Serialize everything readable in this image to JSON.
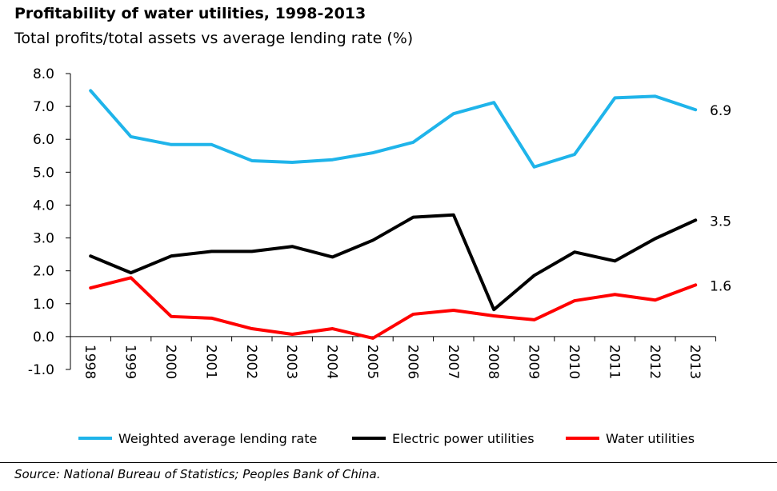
{
  "title": "Profitability of water utilities, 1998-2013",
  "subtitle": "Total profits/total assets vs average lending rate (%)",
  "source": "Source: National Bureau of Statistics; Peoples Bank of China.",
  "chart_data": {
    "type": "line",
    "title": "Profitability of water utilities, 1998-2013",
    "subtitle": "Total profits/total assets vs average lending rate (%)",
    "xlabel": "",
    "ylabel": "",
    "ylim": [
      -1,
      8
    ],
    "yticks": [
      "-1.0",
      "0.0",
      "1.0",
      "2.0",
      "3.0",
      "4.0",
      "5.0",
      "6.0",
      "7.0",
      "8.0"
    ],
    "grid": false,
    "legend": "bottom",
    "categories": [
      "1998",
      "1999",
      "2000",
      "2001",
      "2002",
      "2003",
      "2004",
      "2005",
      "2006",
      "2007",
      "2008",
      "2009",
      "2010",
      "2011",
      "2012",
      "2013"
    ],
    "series": [
      {
        "name": "Weighted average lending rate",
        "color": "#1fb4ea",
        "end_label": "6.9",
        "values": [
          7.48,
          6.08,
          5.84,
          5.84,
          5.35,
          5.3,
          5.38,
          5.59,
          5.91,
          6.78,
          7.12,
          5.16,
          5.54,
          7.26,
          7.31,
          6.9
        ]
      },
      {
        "name": "Electric power utilities",
        "color": "#000000",
        "end_label": "3.5",
        "values": [
          2.45,
          1.94,
          2.45,
          2.59,
          2.59,
          2.74,
          2.42,
          2.93,
          3.63,
          3.7,
          0.82,
          1.86,
          2.57,
          2.3,
          2.98,
          3.54
        ]
      },
      {
        "name": "Water utilities",
        "color": "#ff0000",
        "end_label": "1.6",
        "values": [
          1.48,
          1.79,
          0.61,
          0.56,
          0.24,
          0.07,
          0.24,
          -0.05,
          0.68,
          0.8,
          0.63,
          0.51,
          1.09,
          1.28,
          1.11,
          1.57
        ]
      }
    ]
  }
}
